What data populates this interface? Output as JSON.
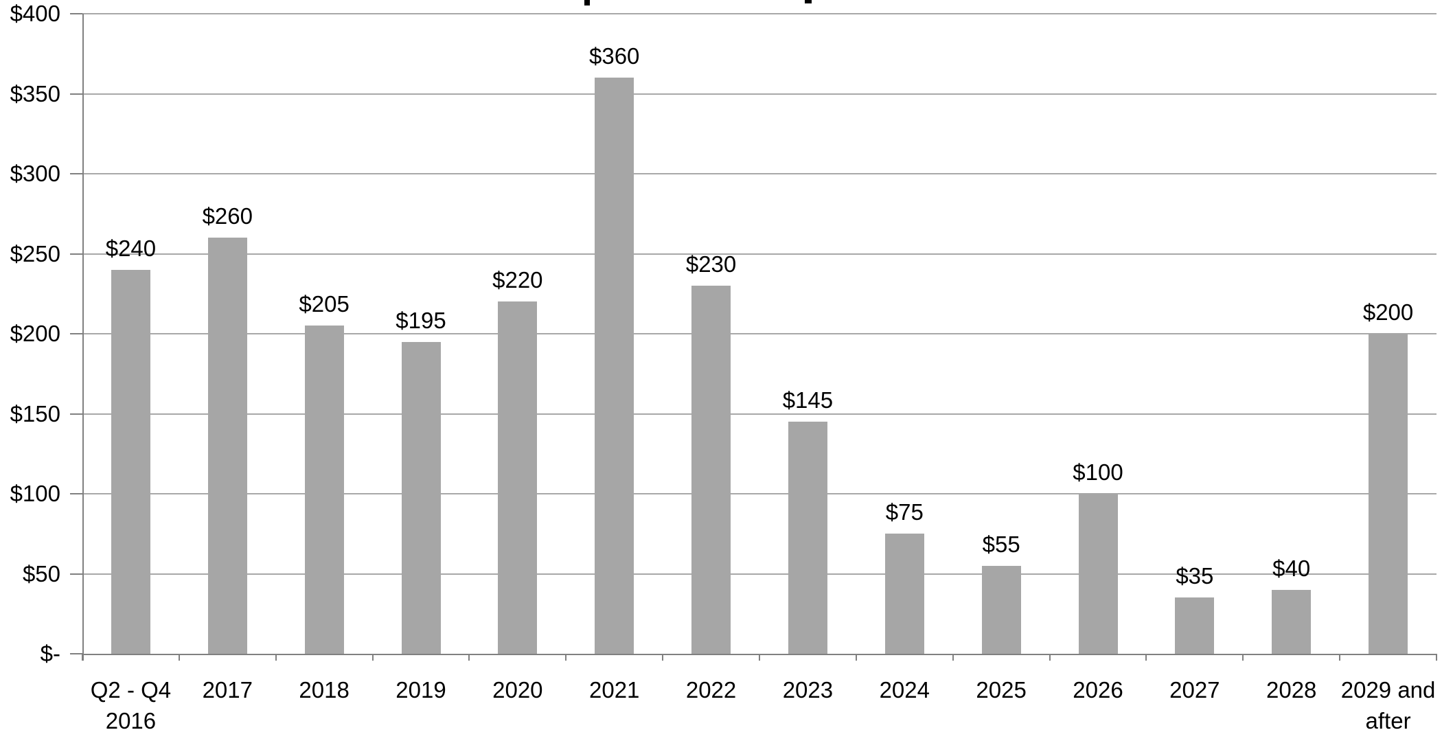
{
  "chart_data": {
    "type": "bar",
    "categories": [
      "Q2 - Q4\n2016",
      "2017",
      "2018",
      "2019",
      "2020",
      "2021",
      "2022",
      "2023",
      "2024",
      "2025",
      "2026",
      "2027",
      "2028",
      "2029 and\nafter"
    ],
    "values": [
      240,
      260,
      205,
      195,
      220,
      360,
      230,
      145,
      75,
      55,
      100,
      35,
      40,
      200
    ],
    "data_labels": [
      "$240",
      "$260",
      "$205",
      "$195",
      "$220",
      "$360",
      "$230",
      "$145",
      "$75",
      "$55",
      "$100",
      "$35",
      "$40",
      "$200"
    ],
    "title": "",
    "xlabel": "",
    "ylabel": "",
    "ylim": [
      0,
      400
    ],
    "y_tick_step": 50,
    "y_tick_labels": [
      "$-",
      "$50",
      "$100",
      "$150",
      "$200",
      "$250",
      "$300",
      "$350",
      "$400"
    ],
    "grid": true,
    "legend": false,
    "colors": {
      "bar": "#a6a6a6",
      "gridline": "#a8a8a8",
      "axis": "#808080",
      "text": "#000000",
      "background": "#ffffff"
    }
  }
}
